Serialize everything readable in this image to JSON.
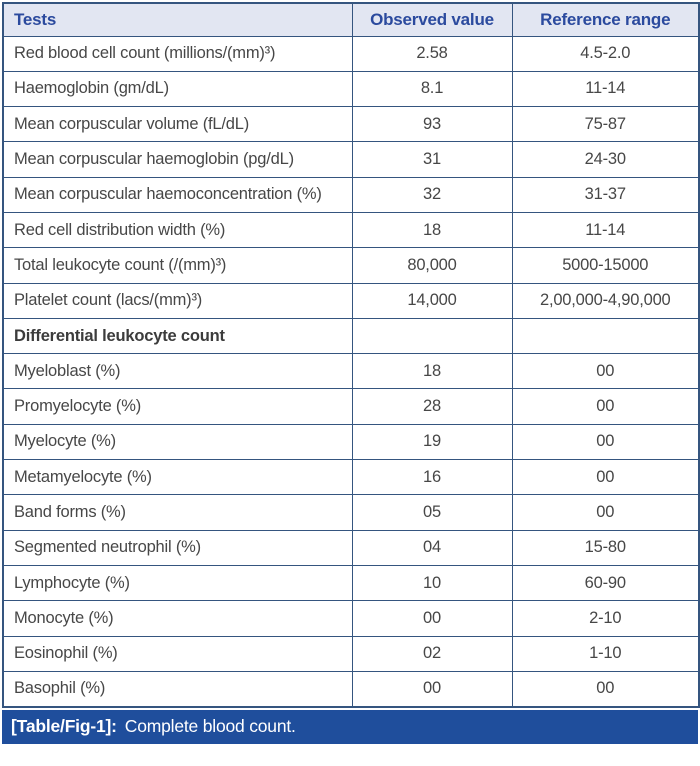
{
  "table": {
    "columns": [
      "Tests",
      "Observed value",
      "Reference range"
    ],
    "rows": [
      {
        "test": "Red blood cell count (millions/(mm)³)",
        "observed": "2.58",
        "reference": "4.5-2.0",
        "section": false
      },
      {
        "test": "Haemoglobin (gm/dL)",
        "observed": "8.1",
        "reference": "11-14",
        "section": false
      },
      {
        "test": "Mean corpuscular volume (fL/dL)",
        "observed": "93",
        "reference": "75-87",
        "section": false
      },
      {
        "test": "Mean corpuscular haemoglobin (pg/dL)",
        "observed": "31",
        "reference": "24-30",
        "section": false
      },
      {
        "test": "Mean corpuscular haemoconcentration (%)",
        "observed": "32",
        "reference": "31-37",
        "section": false
      },
      {
        "test": "Red cell distribution width (%)",
        "observed": "18",
        "reference": "11-14",
        "section": false
      },
      {
        "test": "Total leukocyte count (/(mm)³)",
        "observed": "80,000",
        "reference": "5000-15000",
        "section": false
      },
      {
        "test": "Platelet count (lacs/(mm)³)",
        "observed": "14,000",
        "reference": "2,00,000-4,90,000",
        "section": false
      },
      {
        "test": "Differential leukocyte count",
        "observed": "",
        "reference": "",
        "section": true
      },
      {
        "test": "Myeloblast (%)",
        "observed": "18",
        "reference": "00",
        "section": false
      },
      {
        "test": "Promyelocyte (%)",
        "observed": "28",
        "reference": "00",
        "section": false
      },
      {
        "test": "Myelocyte (%)",
        "observed": "19",
        "reference": "00",
        "section": false
      },
      {
        "test": "Metamyelocyte (%)",
        "observed": "16",
        "reference": "00",
        "section": false
      },
      {
        "test": "Band forms (%)",
        "observed": "05",
        "reference": "00",
        "section": false
      },
      {
        "test": "Segmented neutrophil (%)",
        "observed": "04",
        "reference": "15-80",
        "section": false
      },
      {
        "test": "Lymphocyte (%)",
        "observed": "10",
        "reference": "60-90",
        "section": false
      },
      {
        "test": "Monocyte (%)",
        "observed": "00",
        "reference": "2-10",
        "section": false
      },
      {
        "test": "Eosinophil (%)",
        "observed": "02",
        "reference": "1-10",
        "section": false
      },
      {
        "test": "Basophil (%)",
        "observed": "00",
        "reference": "00",
        "section": false
      }
    ]
  },
  "caption": {
    "label": "[Table/Fig-1]:",
    "text": "Complete blood count."
  },
  "colors": {
    "header_bg": "#e2e6f2",
    "header_text": "#2b4a9e",
    "border": "#35557f",
    "body_text": "#474747",
    "caption_bg": "#1f4e9c",
    "caption_text": "#ffffff",
    "page_bg": "#ffffff"
  }
}
